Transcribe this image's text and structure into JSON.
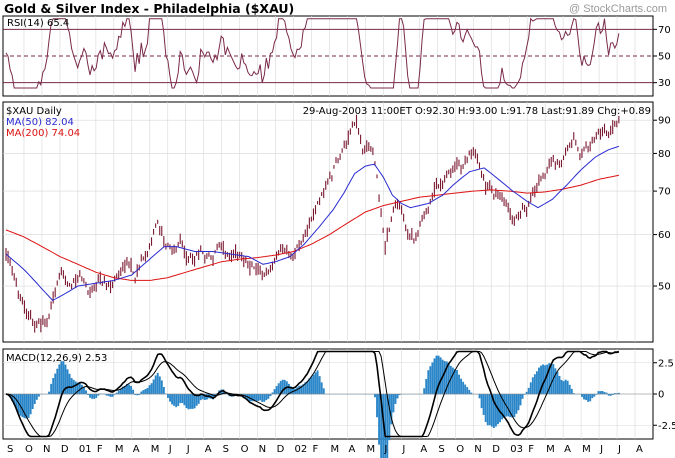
{
  "header": {
    "title": "Gold & Silver Index - Philadelphia ($XAU)",
    "copyright": "@ StockCharts.com"
  },
  "colors": {
    "rsi_line": "#7a2a4a",
    "rsi_ref": "#7a2a4a",
    "price_bars": "#7a1830",
    "ma50": "#2a2ad0",
    "ma200": "#dd1111",
    "macd_line": "#000000",
    "macd_signal": "#000000",
    "histogram": "#2a86c8"
  },
  "chart_data": [
    {
      "type": "line",
      "name": "rsi",
      "label": "RSI(14) 65.4",
      "ylim": [
        20,
        80
      ],
      "reference_lines": [
        30,
        50,
        70
      ],
      "y_ticks": [
        "70",
        "50",
        "30"
      ]
    },
    {
      "type": "bar",
      "name": "price",
      "label": "$XAU Daily",
      "info": "29-Aug-2003 11:00ET O:92.30 H:93.00 L:91.78 Last:91.89 Chg:+0.89",
      "ma50_label": "MA(50) 82.04",
      "ma200_label": "MA(200) 74.04",
      "scale": "log",
      "ylim": [
        41,
        96
      ],
      "y_ticks": [
        "90",
        "80",
        "70",
        "60",
        "50"
      ],
      "y_tick_values": [
        90,
        80,
        70,
        60,
        50
      ],
      "x_months": [
        "S",
        "O",
        "N",
        "D",
        "01",
        "F",
        "M",
        "A",
        "M",
        "J",
        "J",
        "A",
        "S",
        "O",
        "N",
        "D",
        "02",
        "F",
        "M",
        "A",
        "M",
        "J",
        "J",
        "A",
        "S",
        "O",
        "N",
        "D",
        "03",
        "F",
        "M",
        "A",
        "M",
        "J",
        "J",
        "A"
      ],
      "anchors": [
        [
          0,
          57
        ],
        [
          0.4,
          51
        ],
        [
          1.2,
          46
        ],
        [
          1.7,
          43.5
        ],
        [
          2.3,
          44
        ],
        [
          2.7,
          48.5
        ],
        [
          3.2,
          52
        ],
        [
          3.7,
          50.5
        ],
        [
          4.2,
          51.5
        ],
        [
          4.6,
          49
        ],
        [
          5.2,
          52
        ],
        [
          5.7,
          49.5
        ],
        [
          6.2,
          52
        ],
        [
          6.7,
          55
        ],
        [
          7.2,
          52
        ],
        [
          7.8,
          57
        ],
        [
          8.4,
          62
        ],
        [
          8.8,
          59
        ],
        [
          9.3,
          56
        ],
        [
          9.7,
          58.5
        ],
        [
          10.2,
          55
        ],
        [
          10.8,
          57
        ],
        [
          11.3,
          55.5
        ],
        [
          11.8,
          57
        ],
        [
          12.3,
          55.5
        ],
        [
          12.8,
          56.5
        ],
        [
          13.2,
          55.5
        ],
        [
          13.7,
          54.5
        ],
        [
          14.2,
          51.5
        ],
        [
          14.7,
          53
        ],
        [
          15.2,
          55
        ],
        [
          15.7,
          56.5
        ],
        [
          16.2,
          58
        ],
        [
          16.7,
          61
        ],
        [
          17.2,
          65
        ],
        [
          17.7,
          70
        ],
        [
          18.2,
          75
        ],
        [
          18.7,
          80
        ],
        [
          19.2,
          85
        ],
        [
          19.5,
          88
        ],
        [
          19.9,
          80
        ],
        [
          20.3,
          82
        ],
        [
          20.6,
          76
        ],
        [
          20.8,
          67
        ],
        [
          21.1,
          58
        ],
        [
          21.3,
          61
        ],
        [
          21.6,
          66
        ],
        [
          22,
          66
        ],
        [
          22.3,
          62
        ],
        [
          22.7,
          60
        ],
        [
          23.3,
          64
        ],
        [
          23.8,
          71
        ],
        [
          24.3,
          73.5
        ],
        [
          24.8,
          76
        ],
        [
          25.3,
          76
        ],
        [
          25.7,
          81
        ],
        [
          26.1,
          78
        ],
        [
          26.6,
          72
        ],
        [
          27.1,
          70
        ],
        [
          27.5,
          68
        ],
        [
          27.9,
          65
        ],
        [
          28.3,
          63
        ],
        [
          28.8,
          66
        ],
        [
          29.3,
          69
        ],
        [
          29.8,
          74
        ],
        [
          30.3,
          77
        ],
        [
          30.8,
          78
        ],
        [
          31.3,
          81
        ],
        [
          31.6,
          83
        ],
        [
          32,
          79
        ],
        [
          32.5,
          82
        ],
        [
          32.9,
          86
        ],
        [
          33.3,
          88
        ],
        [
          33.7,
          87
        ],
        [
          34.1,
          91
        ]
      ],
      "ma50_anchors": [
        [
          0,
          56
        ],
        [
          1,
          53
        ],
        [
          2,
          49.5
        ],
        [
          2.6,
          47.5
        ],
        [
          3.2,
          48.5
        ],
        [
          4,
          50
        ],
        [
          5,
          50.5
        ],
        [
          6,
          51
        ],
        [
          7,
          52
        ],
        [
          8,
          55
        ],
        [
          8.8,
          57.5
        ],
        [
          9.5,
          57.5
        ],
        [
          10.5,
          56.5
        ],
        [
          11.5,
          56.5
        ],
        [
          12.5,
          56
        ],
        [
          13.5,
          55.5
        ],
        [
          14.3,
          54
        ],
        [
          15,
          54.5
        ],
        [
          15.8,
          55.5
        ],
        [
          16.6,
          58
        ],
        [
          17.4,
          61.5
        ],
        [
          18.2,
          65.5
        ],
        [
          18.8,
          69.5
        ],
        [
          19.4,
          74.5
        ],
        [
          20,
          76.5
        ],
        [
          20.5,
          77
        ],
        [
          21,
          73.5
        ],
        [
          21.5,
          69
        ],
        [
          22,
          67
        ],
        [
          22.5,
          66
        ],
        [
          23.5,
          67
        ],
        [
          24.3,
          69
        ],
        [
          25,
          72
        ],
        [
          25.8,
          75
        ],
        [
          26.6,
          76
        ],
        [
          27.4,
          73
        ],
        [
          28.2,
          70
        ],
        [
          29,
          67.5
        ],
        [
          29.6,
          66
        ],
        [
          30.4,
          68
        ],
        [
          31.2,
          71.5
        ],
        [
          32,
          75.5
        ],
        [
          32.8,
          79
        ],
        [
          33.5,
          81
        ],
        [
          34.1,
          82.04
        ]
      ],
      "ma200_anchors": [
        [
          0,
          61
        ],
        [
          1,
          59.5
        ],
        [
          2,
          57.5
        ],
        [
          3,
          55.5
        ],
        [
          4,
          54
        ],
        [
          5,
          52.5
        ],
        [
          6,
          51.5
        ],
        [
          7,
          51
        ],
        [
          8,
          51
        ],
        [
          9,
          51.5
        ],
        [
          10,
          52.5
        ],
        [
          11,
          53.5
        ],
        [
          12,
          54.5
        ],
        [
          13,
          55
        ],
        [
          14,
          55.3
        ],
        [
          15,
          55.8
        ],
        [
          16,
          56.5
        ],
        [
          17,
          58
        ],
        [
          18,
          60
        ],
        [
          19,
          62.5
        ],
        [
          20,
          65
        ],
        [
          21,
          66.5
        ],
        [
          22,
          67.5
        ],
        [
          23,
          68.5
        ],
        [
          24,
          69
        ],
        [
          25,
          69.5
        ],
        [
          26,
          70
        ],
        [
          27,
          70.3
        ],
        [
          28,
          70
        ],
        [
          29,
          69.5
        ],
        [
          30,
          69.8
        ],
        [
          31,
          70.5
        ],
        [
          32,
          71.5
        ],
        [
          33,
          73
        ],
        [
          34.1,
          74.04
        ]
      ]
    },
    {
      "type": "line",
      "name": "macd",
      "label": "MACD(12,26,9) 2.53",
      "ylim": [
        -3.6,
        3.6
      ],
      "y_ticks": [
        "2.5",
        "0",
        "-2.5"
      ],
      "y_tick_values": [
        2.5,
        0,
        -2.5
      ]
    }
  ]
}
